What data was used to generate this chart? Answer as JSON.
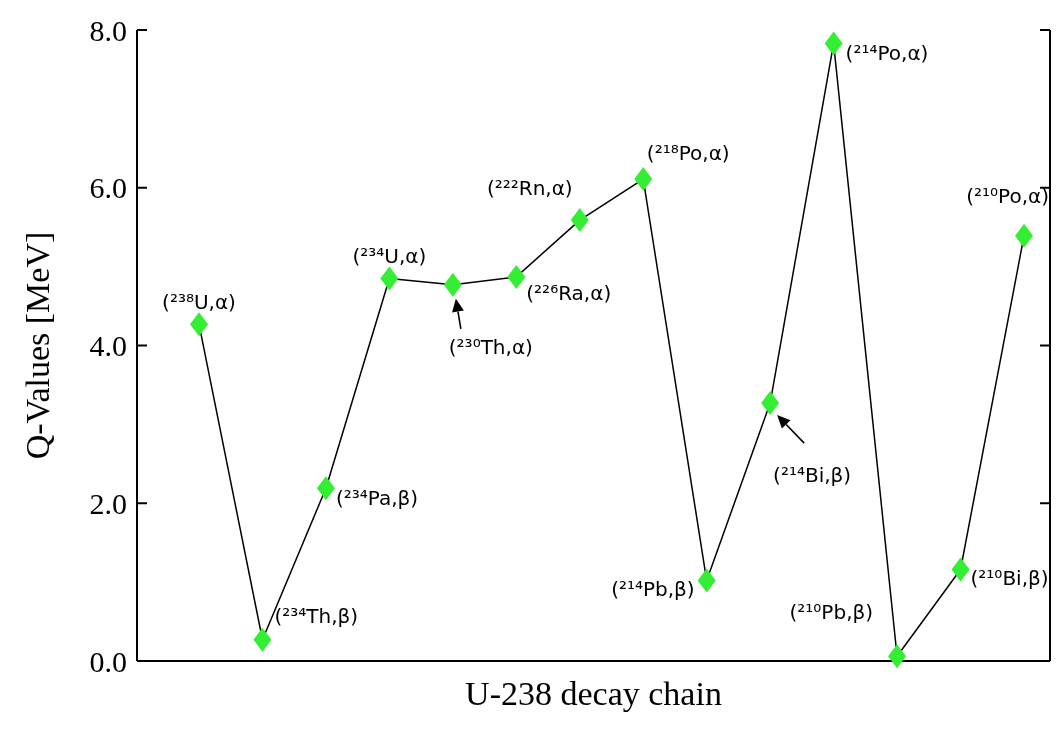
{
  "chart_data": {
    "type": "line",
    "xlabel": "U-238 decay chain",
    "ylabel": "Q-Values [MeV]",
    "categories": [
      null,
      null,
      null,
      null,
      null,
      null,
      null,
      null,
      null,
      null,
      null,
      null,
      null,
      null
    ],
    "series": [
      {
        "color": "#33ee33",
        "values": [
          4.27,
          0.27,
          2.19,
          4.85,
          4.77,
          4.87,
          5.59,
          6.11,
          1.02,
          3.27,
          7.83,
          0.06,
          1.16,
          5.39
        ],
        "value_labels": [
          "(²³⁸U,α)",
          "(²³⁴Th,β)",
          "(²³⁴Pa,β)",
          "(²³⁴U,α)",
          "(²³⁰Th,α)",
          "(²²⁶Ra,α)",
          "(²²²Rn,α)",
          "(²¹⁸Po,α)",
          "(²¹⁴Pb,β)",
          "(²¹⁴Bi,β)",
          "(²¹⁴Po,α)",
          "(²¹⁰Pb,β)",
          "(²¹⁰Bi,β)",
          "(²¹⁰Po,α)"
        ]
      }
    ],
    "ylim": [
      0,
      8
    ],
    "yticks": [
      {
        "value": 0,
        "label": "0.0"
      },
      {
        "value": 2,
        "label": "2.0"
      },
      {
        "value": 4,
        "label": "4.0"
      },
      {
        "value": 6,
        "label": "6.0"
      },
      {
        "value": 8,
        "label": "8.0"
      }
    ],
    "marker": "diamond",
    "line_style": "solid"
  }
}
